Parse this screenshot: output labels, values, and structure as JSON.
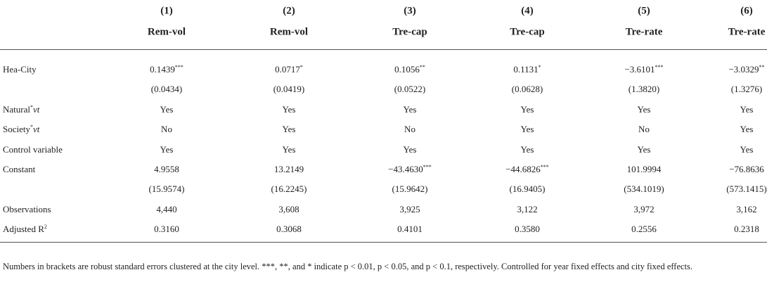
{
  "table": {
    "columns": [
      {
        "number": "(1)",
        "name": "Rem-vol"
      },
      {
        "number": "(2)",
        "name": "Rem-vol"
      },
      {
        "number": "(3)",
        "name": "Tre-cap"
      },
      {
        "number": "(4)",
        "name": "Tre-cap"
      },
      {
        "number": "(5)",
        "name": "Tre-rate"
      },
      {
        "number": "(6)",
        "name": "Tre-rate"
      }
    ],
    "rows": [
      {
        "label": "Hea-City",
        "cells": [
          {
            "text": "0.1439",
            "sup": "***"
          },
          {
            "text": "0.0717",
            "sup": "*"
          },
          {
            "text": "0.1056",
            "sup": "**"
          },
          {
            "text": "0.1131",
            "sup": "*"
          },
          {
            "text": "−3.6101",
            "sup": "***"
          },
          {
            "text": "−3.0329",
            "sup": "**"
          }
        ]
      },
      {
        "cells": [
          "(0.0434)",
          "(0.0419)",
          "(0.0522)",
          "(0.0628)",
          "(1.3820)",
          "(1.3276)"
        ]
      },
      {
        "label": {
          "text": "Natural",
          "sup": "*",
          "italic": "νt"
        },
        "cells": [
          "Yes",
          "Yes",
          "Yes",
          "Yes",
          "Yes",
          "Yes"
        ]
      },
      {
        "label": {
          "text": "Society",
          "sup": "*",
          "italic": "νt"
        },
        "cells": [
          "No",
          "Yes",
          "No",
          "Yes",
          "No",
          "Yes"
        ]
      },
      {
        "label": "Control variable",
        "cells": [
          "Yes",
          "Yes",
          "Yes",
          "Yes",
          "Yes",
          "Yes"
        ]
      },
      {
        "label": "Constant",
        "cells": [
          "4.9558",
          "13.2149",
          {
            "text": "−43.4630",
            "sup": "***"
          },
          {
            "text": "−44.6826",
            "sup": "***"
          },
          "101.9994",
          "−76.8636"
        ]
      },
      {
        "cells": [
          "(15.9574)",
          "(16.2245)",
          "(15.9642)",
          "(16.9405)",
          "(534.1019)",
          "(573.1415)"
        ]
      },
      {
        "label": "Observations",
        "cells": [
          "4,440",
          "3,608",
          "3,925",
          "3,122",
          "3,972",
          "3,162"
        ]
      },
      {
        "label": {
          "text": "Adjusted R",
          "sup": "2"
        },
        "cells": [
          "0.3160",
          "0.3068",
          "0.4101",
          "0.3580",
          "0.2556",
          "0.2318"
        ]
      }
    ],
    "note": "Numbers in brackets are robust standard errors clustered at the city level. ***, **, and * indicate p < 0.01, p < 0.05, and p < 0.1, respectively. Controlled for year fixed effects and city fixed effects."
  }
}
